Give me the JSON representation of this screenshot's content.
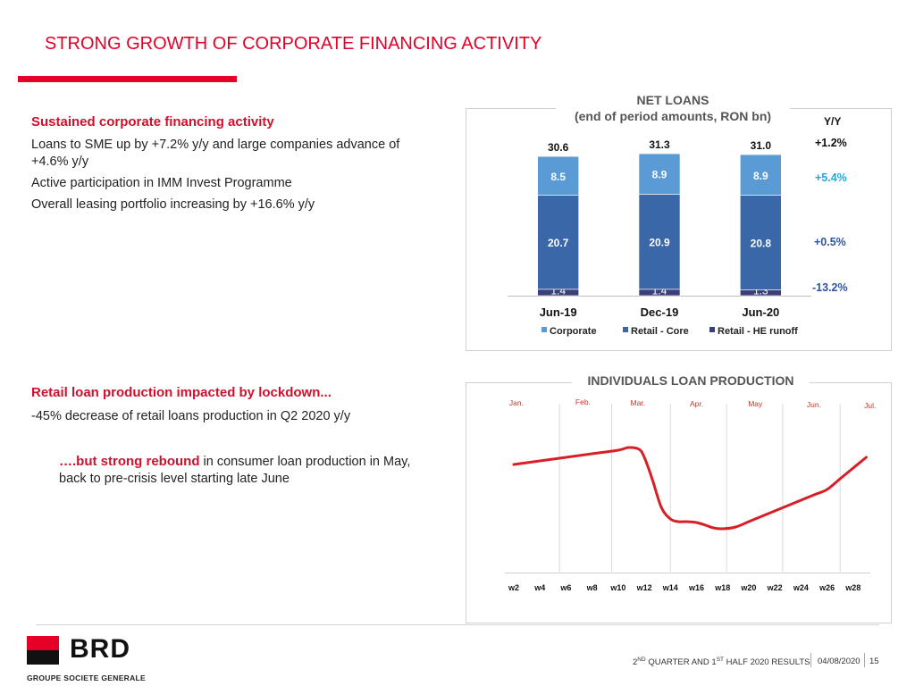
{
  "page": {
    "title": "STRONG GROWTH OF CORPORATE FINANCING ACTIVITY"
  },
  "corporate": {
    "heading": "Sustained corporate financing activity",
    "lines": [
      "Loans to SME up by +7.2% y/y and large companies advance of +4.6% y/y",
      "Active participation in IMM Invest Programme",
      "Overall leasing portfolio increasing by +16.6% y/y"
    ]
  },
  "retail": {
    "heading": "Retail loan production impacted by lockdown...",
    "line": "-45% decrease of retail loans production in Q2 2020 y/y",
    "rebound_bold": "….but strong rebound",
    "rebound_rest": " in consumer loan production in May, back to pre-crisis level starting late June"
  },
  "net_loans": {
    "title_line1": "NET LOANS",
    "title_line2": "(end of period amounts, RON bn)",
    "yy_header": "Y/Y",
    "yy_total": "+1.2%",
    "yy_series": [
      "+5.4%",
      "+0.5%",
      "-13.2%"
    ],
    "colors": {
      "corporate": "#5b9bd5",
      "retail_core": "#3a67a8",
      "retail_runoff": "#3a3f7a",
      "yy_corporate": "#1fa8d9",
      "yy_core": "#2e55a0",
      "yy_runoff": "#2e55a0"
    }
  },
  "individuals": {
    "title": "INDIVIDUALS LOAN PRODUCTION",
    "color": "#d81e26"
  },
  "footer": {
    "logo": "BRD",
    "logo_sub": "GROUPE SOCIETE GENERALE",
    "report_nd": "2",
    "report_sup1": "ND",
    "report_mid": " QUARTER AND 1",
    "report_sup2": "ST",
    "report_end": " HALF 2020 RESULTS",
    "date": "04/08/2020",
    "page": "15"
  },
  "chart_data": [
    {
      "type": "bar",
      "stacked": true,
      "title": "NET LOANS (end of period amounts, RON bn)",
      "categories": [
        "Jun-19",
        "Dec-19",
        "Jun-20"
      ],
      "series": [
        {
          "name": "Retail - HE runoff",
          "values": [
            1.4,
            1.4,
            1.3
          ]
        },
        {
          "name": "Retail - Core",
          "values": [
            20.7,
            20.9,
            20.8
          ]
        },
        {
          "name": "Corporate",
          "values": [
            8.5,
            8.9,
            8.9
          ]
        }
      ],
      "totals": [
        30.6,
        31.3,
        31.0
      ],
      "total_labels": [
        "30.6",
        "31.3",
        "31.0"
      ],
      "value_labels": [
        [
          "1.4",
          "1.4",
          "1.3"
        ],
        [
          "20.7",
          "20.9",
          "20.8"
        ],
        [
          "8.5",
          "8.9",
          "8.9"
        ]
      ],
      "legend": [
        "Corporate",
        "Retail - Core",
        "Retail - HE runoff"
      ],
      "legend_position": "bottom",
      "ylim": [
        0,
        32
      ]
    },
    {
      "type": "line",
      "title": "INDIVIDUALS LOAN PRODUCTION",
      "x_ticks": [
        "w2",
        "w4",
        "w6",
        "w8",
        "w10",
        "w12",
        "w14",
        "w16",
        "w18",
        "w20",
        "w22",
        "w24",
        "w26",
        "w28"
      ],
      "months": [
        {
          "label": "Jan.",
          "week": 2.2
        },
        {
          "label": "Feb.",
          "week": 7.3
        },
        {
          "label": "Mar.",
          "week": 11.5
        },
        {
          "label": "Apr.",
          "week": 16.0
        },
        {
          "label": "May",
          "week": 20.5
        },
        {
          "label": "Jun.",
          "week": 25.0
        },
        {
          "label": "Jul.",
          "week": 29.3
        }
      ],
      "month_dividers": [
        5.5,
        9.5,
        14.0,
        18.3,
        22.6,
        27.0
      ],
      "series": [
        {
          "name": "Individuals loan production",
          "x": [
            2,
            4,
            6,
            8,
            10,
            10.8,
            11.6,
            12,
            12.6,
            13.3,
            14,
            14.6,
            15.2,
            16,
            16.7,
            17.3,
            18,
            19,
            20,
            21,
            22,
            23,
            24,
            25,
            26,
            27,
            28,
            29
          ],
          "y": [
            60,
            62,
            64,
            66,
            68,
            69.5,
            68.5,
            64,
            52,
            36,
            29.5,
            28,
            28,
            27.5,
            26,
            24.5,
            24,
            25,
            28,
            31,
            34,
            37,
            40,
            43,
            46,
            52,
            58,
            64
          ]
        }
      ],
      "ylim": [
        0,
        100
      ],
      "xlim": [
        2,
        30
      ]
    }
  ]
}
